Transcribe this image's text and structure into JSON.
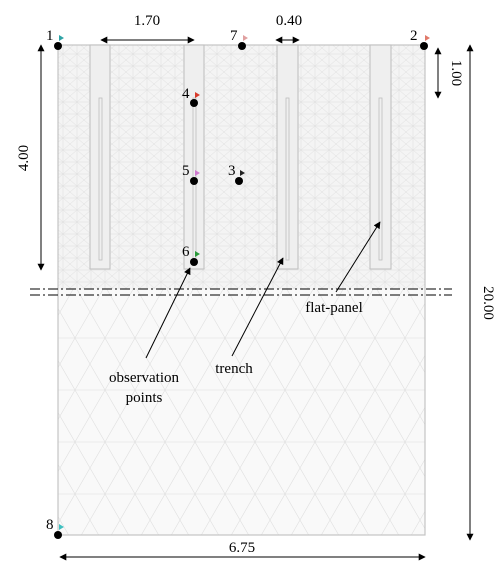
{
  "dimensions": {
    "top_width": "1.70",
    "trench_width": "0.40",
    "top_depth": "1.00",
    "upper_depth": "4.00",
    "total_depth": "20.00",
    "total_width": "6.75"
  },
  "labels": {
    "observation_line1": "observation",
    "observation_line2": "points",
    "trench": "trench",
    "flat_panel": "flat-panel"
  },
  "points": [
    {
      "id": "1",
      "label": "1",
      "color": "#2fa3a6"
    },
    {
      "id": "2",
      "label": "2",
      "color": "#e07a6a"
    },
    {
      "id": "3",
      "label": "3",
      "color": "#222222"
    },
    {
      "id": "4",
      "label": "4",
      "color": "#d83a2a"
    },
    {
      "id": "5",
      "label": "5",
      "color": "#d07ad0"
    },
    {
      "id": "6",
      "label": "6",
      "color": "#2a9a3a"
    },
    {
      "id": "7",
      "label": "7",
      "color": "#e0a0a0"
    },
    {
      "id": "8",
      "label": "8",
      "color": "#40c0c0"
    }
  ],
  "colors": {
    "mesh_fine": "#f3f3f3",
    "mesh_coarse": "#f8f8f8",
    "mesh_line": "#dcdcdc",
    "outline": "#c8c8c8",
    "trench_fill": "#eeeeee"
  }
}
